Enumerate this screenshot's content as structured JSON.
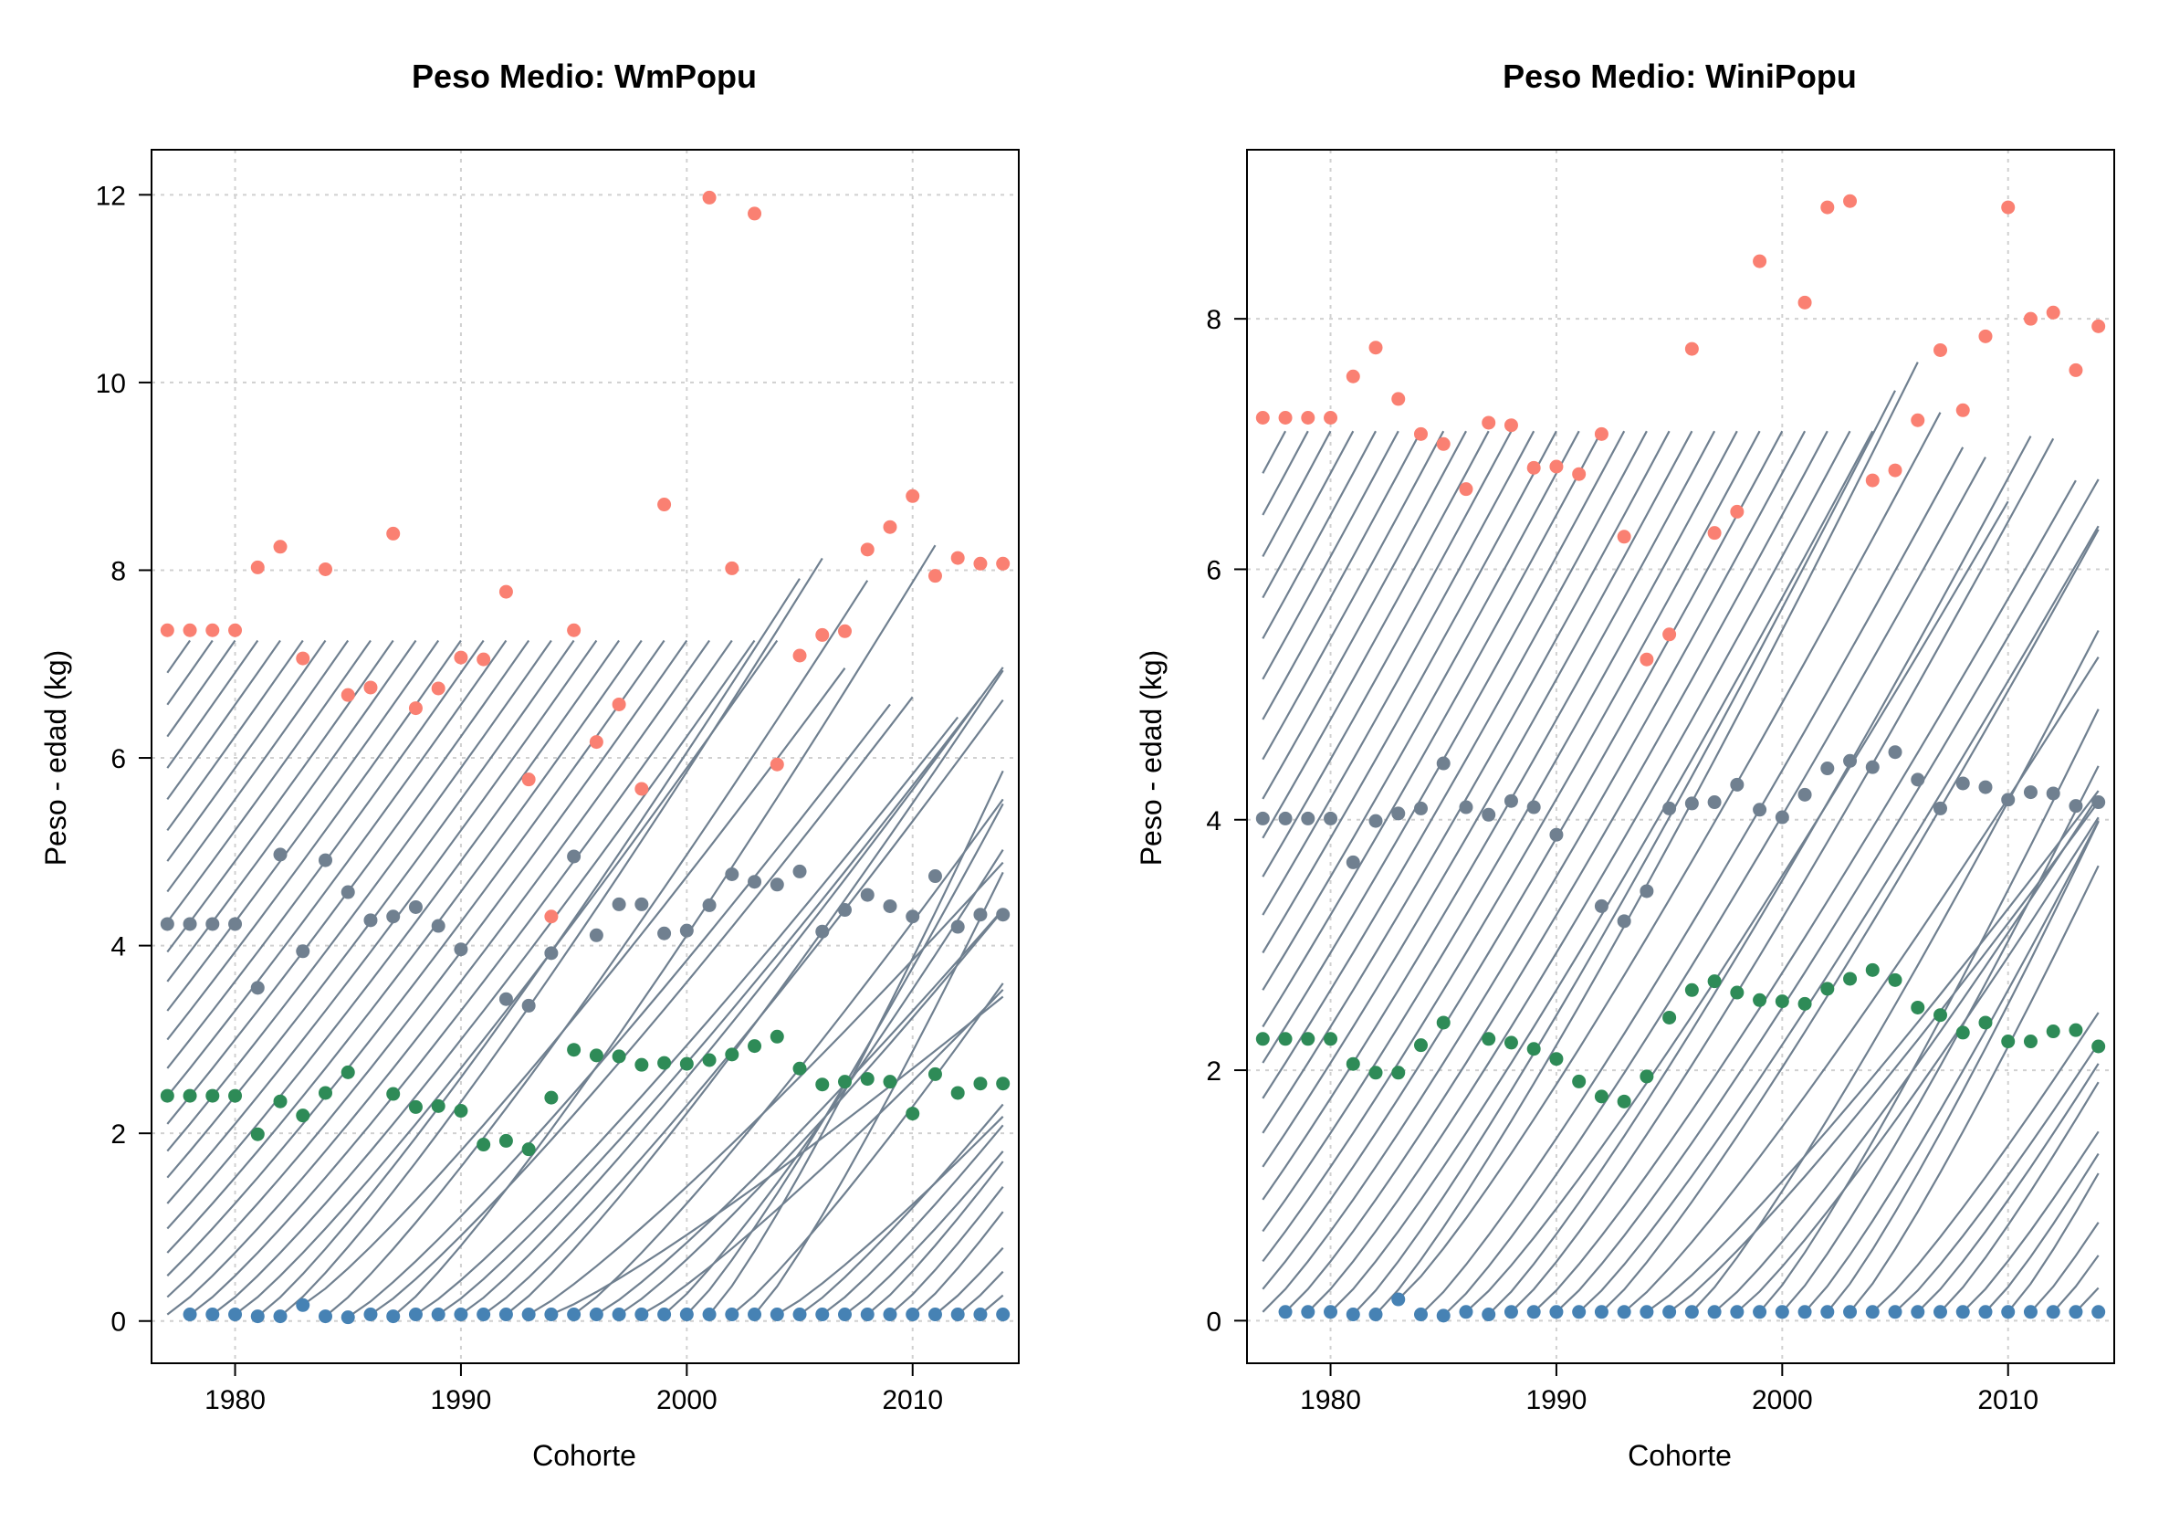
{
  "chart_data": [
    {
      "type": "line",
      "title": "Peso Medio: WmPopu",
      "xlabel": "Cohorte",
      "ylabel": "Peso - edad (kg)",
      "xlim": [
        1976.3,
        2014.7
      ],
      "ylim": [
        -0.45,
        12.48
      ],
      "xticks": [
        1980,
        1990,
        2000,
        2010
      ],
      "yticks": [
        0,
        2,
        4,
        6,
        8,
        10,
        12
      ],
      "grid": true,
      "colors": {
        "line": "#708090",
        "age_last": "#fa8072",
        "age_mid": "#708090",
        "age_low": "#2e8b57",
        "age_first": "#4682b4"
      },
      "max_age": 7.36,
      "dots": {
        "age_first": [
          [
            1978,
            0.07
          ],
          [
            1979,
            0.07
          ],
          [
            1980,
            0.07
          ],
          [
            1981,
            0.05
          ],
          [
            1982,
            0.05
          ],
          [
            1983,
            0.17
          ],
          [
            1984,
            0.05
          ],
          [
            1985,
            0.04
          ],
          [
            1986,
            0.07
          ],
          [
            1987,
            0.05
          ],
          [
            1988,
            0.07
          ],
          [
            1989,
            0.07
          ],
          [
            1990,
            0.07
          ],
          [
            1991,
            0.07
          ],
          [
            1992,
            0.07
          ],
          [
            1993,
            0.07
          ],
          [
            1994,
            0.07
          ],
          [
            1995,
            0.07
          ],
          [
            1996,
            0.07
          ],
          [
            1997,
            0.07
          ],
          [
            1998,
            0.07
          ],
          [
            1999,
            0.07
          ],
          [
            2000,
            0.07
          ],
          [
            2001,
            0.07
          ],
          [
            2002,
            0.07
          ],
          [
            2003,
            0.07
          ],
          [
            2004,
            0.07
          ],
          [
            2005,
            0.07
          ],
          [
            2006,
            0.07
          ],
          [
            2007,
            0.07
          ],
          [
            2008,
            0.07
          ],
          [
            2009,
            0.07
          ],
          [
            2010,
            0.07
          ],
          [
            2011,
            0.07
          ],
          [
            2012,
            0.07
          ],
          [
            2013,
            0.07
          ],
          [
            2014,
            0.07
          ]
        ],
        "age_low": [
          [
            1977,
            2.4
          ],
          [
            1978,
            2.4
          ],
          [
            1979,
            2.4
          ],
          [
            1980,
            2.4
          ],
          [
            1981,
            1.99
          ],
          [
            1982,
            2.34
          ],
          [
            1983,
            2.19
          ],
          [
            1984,
            2.43
          ],
          [
            1985,
            2.65
          ],
          [
            1987,
            2.42
          ],
          [
            1988,
            2.28
          ],
          [
            1989,
            2.29
          ],
          [
            1990,
            2.24
          ],
          [
            1991,
            1.88
          ],
          [
            1992,
            1.92
          ],
          [
            1993,
            1.83
          ],
          [
            1994,
            2.38
          ],
          [
            1995,
            2.89
          ],
          [
            1996,
            2.83
          ],
          [
            1997,
            2.82
          ],
          [
            1998,
            2.73
          ],
          [
            1999,
            2.75
          ],
          [
            2000,
            2.74
          ],
          [
            2001,
            2.78
          ],
          [
            2002,
            2.84
          ],
          [
            2003,
            2.93
          ],
          [
            2004,
            3.03
          ],
          [
            2005,
            2.69
          ],
          [
            2006,
            2.52
          ],
          [
            2007,
            2.55
          ],
          [
            2008,
            2.58
          ],
          [
            2009,
            2.55
          ],
          [
            2010,
            2.21
          ],
          [
            2011,
            2.63
          ],
          [
            2012,
            2.43
          ],
          [
            2013,
            2.53
          ],
          [
            2014,
            2.53
          ]
        ],
        "age_mid": [
          [
            1977,
            4.23
          ],
          [
            1978,
            4.23
          ],
          [
            1979,
            4.23
          ],
          [
            1980,
            4.23
          ],
          [
            1981,
            3.55
          ],
          [
            1982,
            4.97
          ],
          [
            1983,
            3.94
          ],
          [
            1984,
            4.91
          ],
          [
            1985,
            4.57
          ],
          [
            1986,
            4.27
          ],
          [
            1987,
            4.31
          ],
          [
            1988,
            4.41
          ],
          [
            1989,
            4.21
          ],
          [
            1990,
            3.96
          ],
          [
            1992,
            3.43
          ],
          [
            1993,
            3.36
          ],
          [
            1994,
            3.92
          ],
          [
            1995,
            4.95
          ],
          [
            1996,
            4.11
          ],
          [
            1997,
            4.44
          ],
          [
            1998,
            4.44
          ],
          [
            1999,
            4.13
          ],
          [
            2000,
            4.16
          ],
          [
            2001,
            4.43
          ],
          [
            2002,
            4.76
          ],
          [
            2003,
            4.68
          ],
          [
            2004,
            4.65
          ],
          [
            2005,
            4.79
          ],
          [
            2006,
            4.15
          ],
          [
            2007,
            4.38
          ],
          [
            2008,
            4.54
          ],
          [
            2009,
            4.42
          ],
          [
            2010,
            4.31
          ],
          [
            2011,
            4.74
          ],
          [
            2012,
            4.2
          ],
          [
            2013,
            4.33
          ],
          [
            2014,
            4.33
          ]
        ],
        "age_last": [
          [
            1977,
            7.36
          ],
          [
            1978,
            7.36
          ],
          [
            1979,
            7.36
          ],
          [
            1980,
            7.36
          ],
          [
            1981,
            8.03
          ],
          [
            1982,
            8.25
          ],
          [
            1983,
            7.06
          ],
          [
            1984,
            8.01
          ],
          [
            1985,
            6.67
          ],
          [
            1986,
            6.75
          ],
          [
            1987,
            8.39
          ],
          [
            1988,
            6.53
          ],
          [
            1989,
            6.74
          ],
          [
            1990,
            7.07
          ],
          [
            1991,
            7.05
          ],
          [
            1992,
            7.77
          ],
          [
            1993,
            5.77
          ],
          [
            1994,
            4.31
          ],
          [
            1995,
            7.36
          ],
          [
            1996,
            6.17
          ],
          [
            1997,
            6.57
          ],
          [
            1998,
            5.67
          ],
          [
            1999,
            8.7
          ],
          [
            2001,
            11.97
          ],
          [
            2002,
            8.02
          ],
          [
            2003,
            11.8
          ],
          [
            2004,
            5.93
          ],
          [
            2005,
            7.09
          ],
          [
            2006,
            7.31
          ],
          [
            2007,
            7.35
          ],
          [
            2008,
            8.22
          ],
          [
            2009,
            8.46
          ],
          [
            2010,
            8.79
          ],
          [
            2011,
            7.94
          ],
          [
            2012,
            8.13
          ],
          [
            2013,
            8.07
          ],
          [
            2014,
            8.07
          ]
        ]
      }
    },
    {
      "type": "line",
      "title": "Peso Medio: WiniPopu",
      "xlabel": "Cohorte",
      "ylabel": "Peso - edad (kg)",
      "xlim": [
        1976.3,
        2014.7
      ],
      "ylim": [
        -0.34,
        9.35
      ],
      "xticks": [
        1980,
        1990,
        2000,
        2010
      ],
      "yticks": [
        0,
        2,
        4,
        6,
        8
      ],
      "grid": true,
      "colors": {
        "line": "#708090",
        "age_last": "#fa8072",
        "age_mid": "#708090",
        "age_low": "#2e8b57",
        "age_first": "#4682b4"
      },
      "max_age": 7.21,
      "dots": {
        "age_first": [
          [
            1978,
            0.07
          ],
          [
            1979,
            0.07
          ],
          [
            1980,
            0.07
          ],
          [
            1981,
            0.05
          ],
          [
            1982,
            0.05
          ],
          [
            1983,
            0.17
          ],
          [
            1984,
            0.05
          ],
          [
            1985,
            0.04
          ],
          [
            1986,
            0.07
          ],
          [
            1987,
            0.05
          ],
          [
            1988,
            0.07
          ],
          [
            1989,
            0.07
          ],
          [
            1990,
            0.07
          ],
          [
            1991,
            0.07
          ],
          [
            1992,
            0.07
          ],
          [
            1993,
            0.07
          ],
          [
            1994,
            0.07
          ],
          [
            1995,
            0.07
          ],
          [
            1996,
            0.07
          ],
          [
            1997,
            0.07
          ],
          [
            1998,
            0.07
          ],
          [
            1999,
            0.07
          ],
          [
            2000,
            0.07
          ],
          [
            2001,
            0.07
          ],
          [
            2002,
            0.07
          ],
          [
            2003,
            0.07
          ],
          [
            2004,
            0.07
          ],
          [
            2005,
            0.07
          ],
          [
            2006,
            0.07
          ],
          [
            2007,
            0.07
          ],
          [
            2008,
            0.07
          ],
          [
            2009,
            0.07
          ],
          [
            2010,
            0.07
          ],
          [
            2011,
            0.07
          ],
          [
            2012,
            0.07
          ],
          [
            2013,
            0.07
          ],
          [
            2014,
            0.07
          ]
        ],
        "age_low": [
          [
            1977,
            2.25
          ],
          [
            1978,
            2.25
          ],
          [
            1979,
            2.25
          ],
          [
            1980,
            2.25
          ],
          [
            1981,
            2.05
          ],
          [
            1982,
            1.98
          ],
          [
            1983,
            1.98
          ],
          [
            1984,
            2.2
          ],
          [
            1985,
            2.38
          ],
          [
            1987,
            2.25
          ],
          [
            1988,
            2.22
          ],
          [
            1989,
            2.17
          ],
          [
            1990,
            2.09
          ],
          [
            1991,
            1.91
          ],
          [
            1992,
            1.79
          ],
          [
            1993,
            1.75
          ],
          [
            1994,
            1.95
          ],
          [
            1995,
            2.42
          ],
          [
            1996,
            2.64
          ],
          [
            1997,
            2.71
          ],
          [
            1998,
            2.62
          ],
          [
            1999,
            2.56
          ],
          [
            2000,
            2.55
          ],
          [
            2001,
            2.53
          ],
          [
            2002,
            2.65
          ],
          [
            2003,
            2.73
          ],
          [
            2004,
            2.8
          ],
          [
            2005,
            2.72
          ],
          [
            2006,
            2.5
          ],
          [
            2007,
            2.44
          ],
          [
            2008,
            2.3
          ],
          [
            2009,
            2.38
          ],
          [
            2010,
            2.23
          ],
          [
            2011,
            2.23
          ],
          [
            2012,
            2.31
          ],
          [
            2013,
            2.32
          ],
          [
            2014,
            2.19
          ]
        ],
        "age_mid": [
          [
            1977,
            4.01
          ],
          [
            1978,
            4.01
          ],
          [
            1979,
            4.01
          ],
          [
            1980,
            4.01
          ],
          [
            1981,
            3.66
          ],
          [
            1982,
            3.99
          ],
          [
            1983,
            4.05
          ],
          [
            1984,
            4.09
          ],
          [
            1985,
            4.45
          ],
          [
            1986,
            4.1
          ],
          [
            1987,
            4.04
          ],
          [
            1988,
            4.15
          ],
          [
            1989,
            4.1
          ],
          [
            1990,
            3.88
          ],
          [
            1992,
            3.31
          ],
          [
            1993,
            3.19
          ],
          [
            1994,
            3.43
          ],
          [
            1995,
            4.09
          ],
          [
            1996,
            4.13
          ],
          [
            1997,
            4.14
          ],
          [
            1998,
            4.28
          ],
          [
            1999,
            4.08
          ],
          [
            2000,
            4.02
          ],
          [
            2001,
            4.2
          ],
          [
            2002,
            4.41
          ],
          [
            2003,
            4.47
          ],
          [
            2004,
            4.42
          ],
          [
            2005,
            4.54
          ],
          [
            2006,
            4.32
          ],
          [
            2007,
            4.09
          ],
          [
            2008,
            4.29
          ],
          [
            2009,
            4.26
          ],
          [
            2010,
            4.16
          ],
          [
            2011,
            4.22
          ],
          [
            2012,
            4.21
          ],
          [
            2013,
            4.11
          ],
          [
            2014,
            4.14
          ]
        ],
        "age_last": [
          [
            1977,
            7.21
          ],
          [
            1978,
            7.21
          ],
          [
            1979,
            7.21
          ],
          [
            1980,
            7.21
          ],
          [
            1981,
            7.54
          ],
          [
            1982,
            7.77
          ],
          [
            1983,
            7.36
          ],
          [
            1984,
            7.08
          ],
          [
            1985,
            7.0
          ],
          [
            1986,
            6.64
          ],
          [
            1987,
            7.17
          ],
          [
            1988,
            7.15
          ],
          [
            1989,
            6.81
          ],
          [
            1990,
            6.82
          ],
          [
            1991,
            6.76
          ],
          [
            1992,
            7.08
          ],
          [
            1993,
            6.26
          ],
          [
            1994,
            5.28
          ],
          [
            1995,
            5.48
          ],
          [
            1996,
            7.76
          ],
          [
            1997,
            6.29
          ],
          [
            1998,
            6.46
          ],
          [
            1999,
            8.46
          ],
          [
            2001,
            8.13
          ],
          [
            2002,
            8.89
          ],
          [
            2003,
            8.94
          ],
          [
            2004,
            6.71
          ],
          [
            2005,
            6.79
          ],
          [
            2006,
            7.19
          ],
          [
            2007,
            7.75
          ],
          [
            2008,
            7.27
          ],
          [
            2009,
            7.86
          ],
          [
            2010,
            8.89
          ],
          [
            2011,
            8.0
          ],
          [
            2012,
            8.05
          ],
          [
            2013,
            7.59
          ],
          [
            2014,
            7.94
          ]
        ]
      }
    }
  ]
}
